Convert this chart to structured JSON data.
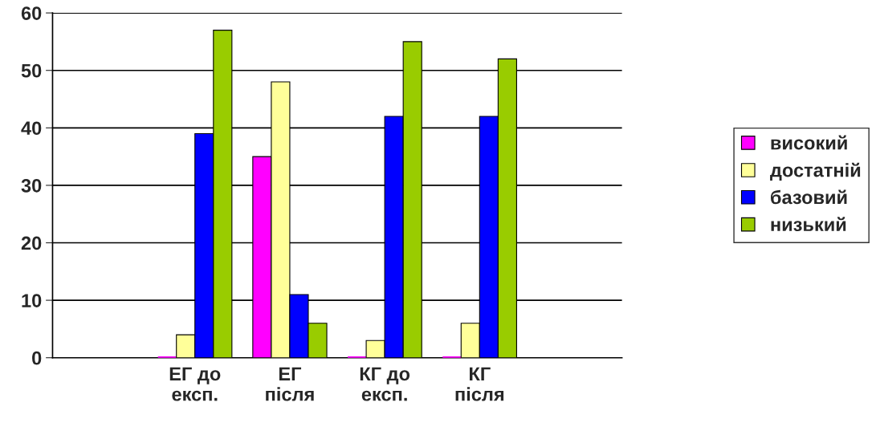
{
  "chart_data": {
    "type": "bar",
    "categories": [
      null,
      "ЕГ до\nексп.",
      "ЕГ\nпісля",
      "КГ до\nексп.",
      "КГ\nпісля",
      null
    ],
    "series": [
      {
        "name": "високий",
        "color": "#ff00ff",
        "values": [
          null,
          0,
          35,
          0,
          0,
          null
        ]
      },
      {
        "name": "достатній",
        "color": "#ffff99",
        "values": [
          null,
          4,
          48,
          3,
          6,
          null
        ]
      },
      {
        "name": "базовий",
        "color": "#0000ff",
        "values": [
          null,
          39,
          11,
          42,
          42,
          null
        ]
      },
      {
        "name": "низький",
        "color": "#99cc00",
        "values": [
          null,
          57,
          6,
          55,
          52,
          null
        ]
      }
    ],
    "ylim": [
      0,
      60
    ],
    "yticks": [
      0,
      10,
      20,
      30,
      40,
      50,
      60
    ],
    "grid": "y",
    "legend": "right"
  }
}
